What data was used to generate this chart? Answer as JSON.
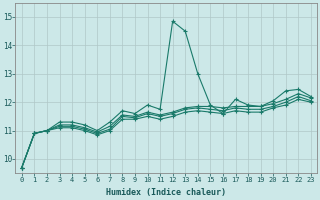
{
  "xlabel": "Humidex (Indice chaleur)",
  "x_ticks": [
    0,
    1,
    2,
    3,
    4,
    5,
    6,
    7,
    8,
    9,
    10,
    11,
    12,
    13,
    14,
    15,
    16,
    17,
    18,
    19,
    20,
    21,
    22,
    23
  ],
  "xlim": [
    -0.5,
    23.5
  ],
  "ylim": [
    9.5,
    15.5
  ],
  "y_ticks": [
    10,
    11,
    12,
    13,
    14,
    15
  ],
  "background_color": "#cce8e8",
  "grid_color": "#b0c8c8",
  "line_color": "#1a7a6a",
  "series": [
    [
      9.7,
      10.9,
      11.0,
      11.3,
      11.3,
      11.2,
      11.0,
      11.3,
      11.7,
      11.6,
      11.9,
      11.75,
      14.85,
      14.5,
      13.0,
      11.9,
      11.6,
      12.1,
      11.9,
      11.85,
      12.05,
      12.4,
      12.45,
      12.2
    ],
    [
      9.7,
      10.9,
      11.0,
      11.2,
      11.2,
      11.1,
      10.95,
      11.15,
      11.55,
      11.5,
      11.65,
      11.55,
      11.65,
      11.8,
      11.85,
      11.85,
      11.8,
      11.85,
      11.85,
      11.85,
      11.95,
      12.1,
      12.3,
      12.15
    ],
    [
      9.7,
      10.9,
      11.0,
      11.15,
      11.15,
      11.05,
      10.9,
      11.05,
      11.5,
      11.45,
      11.6,
      11.5,
      11.6,
      11.75,
      11.8,
      11.75,
      11.7,
      11.8,
      11.75,
      11.75,
      11.85,
      12.0,
      12.2,
      12.05
    ],
    [
      9.7,
      10.9,
      11.0,
      11.1,
      11.1,
      11.0,
      10.85,
      11.0,
      11.4,
      11.4,
      11.5,
      11.4,
      11.5,
      11.65,
      11.7,
      11.65,
      11.6,
      11.7,
      11.65,
      11.65,
      11.8,
      11.9,
      12.1,
      12.0
    ]
  ]
}
